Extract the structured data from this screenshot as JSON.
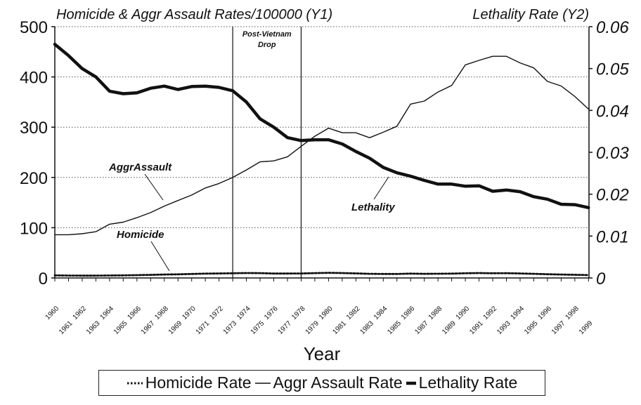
{
  "chart_data": {
    "type": "line",
    "y1_title": "Homicide & Aggr Assault Rates/100000 (Y1)",
    "y2_title": "Lethality Rate (Y2)",
    "xlabel": "Year",
    "x": [
      1960,
      1961,
      1962,
      1963,
      1964,
      1965,
      1966,
      1967,
      1968,
      1969,
      1970,
      1971,
      1972,
      1973,
      1974,
      1975,
      1976,
      1977,
      1978,
      1979,
      1980,
      1981,
      1982,
      1983,
      1984,
      1985,
      1986,
      1987,
      1988,
      1989,
      1990,
      1991,
      1992,
      1993,
      1994,
      1995,
      1996,
      1997,
      1998,
      1999
    ],
    "x_tick_labels": [
      "1960",
      "1961",
      "1962",
      "1963",
      "1964",
      "1965",
      "1966",
      "1967",
      "1968",
      "1969",
      "1970",
      "1971",
      "1972",
      "1973",
      "1974",
      "1975",
      "1976",
      "1977",
      "1978",
      "1979",
      "1980",
      "1981",
      "1982",
      "1983",
      "1984",
      "1985",
      "1986",
      "1987",
      "1988",
      "1989",
      "1990",
      "1991",
      "1992",
      "1993",
      "1994",
      "1995",
      "1996",
      "1997",
      "1998",
      "1999"
    ],
    "y1_lim": [
      0,
      500
    ],
    "y1_ticks": [
      "0",
      "100",
      "200",
      "300",
      "400",
      "500"
    ],
    "y2_lim": [
      0,
      0.06
    ],
    "y2_ticks": [
      "0",
      "0.01",
      "0.02",
      "0.03",
      "0.04",
      "0.05",
      "0.06"
    ],
    "grid": "horizontal dotted",
    "series": [
      {
        "name": "Homicide Rate",
        "axis": "y1",
        "style": "dotted",
        "values": [
          5.1,
          4.8,
          4.6,
          4.6,
          4.9,
          5.1,
          5.6,
          6.2,
          6.9,
          7.3,
          7.9,
          8.6,
          9.0,
          9.4,
          9.8,
          9.6,
          8.8,
          8.8,
          9.0,
          9.7,
          10.2,
          9.8,
          9.1,
          8.3,
          7.9,
          7.9,
          8.6,
          8.3,
          8.4,
          8.7,
          9.4,
          9.8,
          9.3,
          9.5,
          9.0,
          8.2,
          7.4,
          6.8,
          6.3,
          5.7
        ]
      },
      {
        "name": "Aggr Assault Rate",
        "axis": "y1",
        "style": "thin",
        "values": [
          86,
          86,
          88,
          92,
          107,
          111,
          120,
          130,
          143,
          154,
          165,
          179,
          188,
          200,
          215,
          231,
          233,
          241,
          262,
          282,
          298,
          289,
          289,
          279,
          290,
          302,
          346,
          352,
          370,
          383,
          424,
          433,
          441,
          441,
          428,
          418,
          391,
          382,
          361,
          336
        ]
      },
      {
        "name": "Lethality Rate",
        "axis": "y2",
        "style": "thick",
        "values": [
          0.0558,
          0.0531,
          0.05,
          0.048,
          0.0446,
          0.044,
          0.0442,
          0.0453,
          0.0458,
          0.045,
          0.0457,
          0.0458,
          0.0455,
          0.0447,
          0.042,
          0.038,
          0.036,
          0.0335,
          0.0328,
          0.033,
          0.033,
          0.032,
          0.0302,
          0.0286,
          0.0264,
          0.0251,
          0.0243,
          0.0233,
          0.0224,
          0.0224,
          0.0219,
          0.022,
          0.0207,
          0.021,
          0.0206,
          0.0194,
          0.0188,
          0.0176,
          0.0175,
          0.0168
        ]
      }
    ],
    "vertical_markers": [
      1973,
      1978
    ],
    "annotations": [
      {
        "text": "Post-Vietnam Drop",
        "line1": "Post-Vietnam",
        "line2": "Drop"
      },
      {
        "text": "AggrAssault"
      },
      {
        "text": "Homicide"
      },
      {
        "text": "Lethality"
      }
    ],
    "legend": {
      "position": "bottom",
      "items": [
        {
          "label": "Homicide Rate",
          "style": "dotted"
        },
        {
          "label": "Aggr Assault Rate",
          "style": "thin"
        },
        {
          "label": "Lethality Rate",
          "style": "thick"
        }
      ]
    }
  }
}
